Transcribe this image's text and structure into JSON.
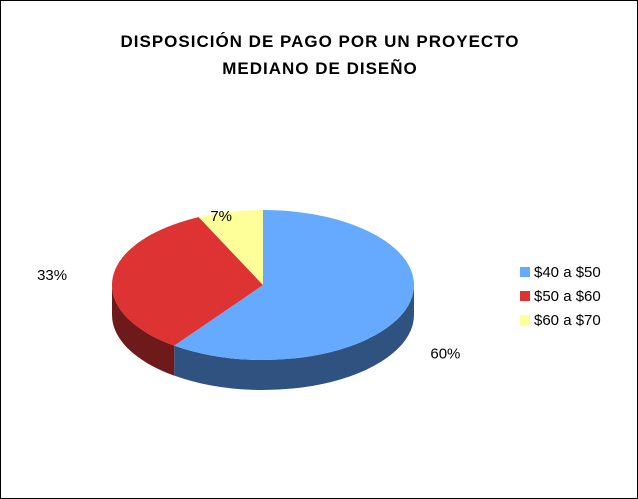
{
  "chart_data": {
    "type": "pie",
    "title": "DISPOSICIÓN DE PAGO POR UN PROYECTO MEDIANO DE DISEÑO",
    "categories": [
      "$40 a $50",
      "$50 a $60",
      "$60 a $70"
    ],
    "values": [
      60,
      33,
      7
    ],
    "value_labels": [
      "60%",
      "33%",
      "7%"
    ],
    "colors": [
      "#66aaff",
      "#dd3333",
      "#ffff99"
    ],
    "side_colors": [
      "#2f5280",
      "#6e1a1a",
      "#9a9a50"
    ],
    "legend": "right"
  }
}
